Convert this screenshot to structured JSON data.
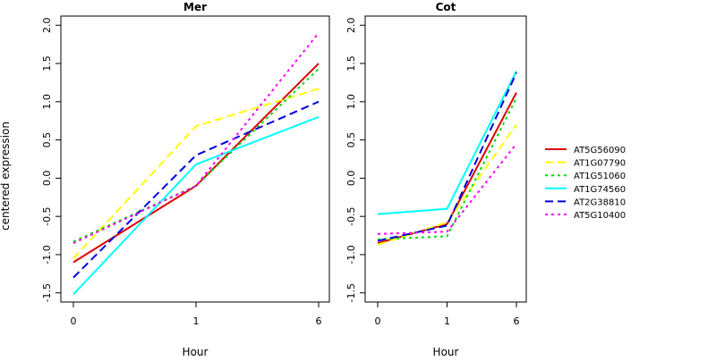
{
  "figure": {
    "ylabel": "centered expression"
  },
  "chart_data": [
    {
      "type": "line",
      "title": "Mer",
      "xlabel": "Hour",
      "ylabel": "centered expression",
      "categories": [
        "0",
        "1",
        "6"
      ],
      "ylim": [
        -1.62,
        2.12
      ],
      "yticks": [
        "-1.5",
        "-1.0",
        "-0.5",
        "0.0",
        "0.5",
        "1.0",
        "1.5",
        "2.0"
      ],
      "grid": false,
      "series": [
        {
          "name": "AT5G56090",
          "color": "#dd0000",
          "dash": "solid",
          "values": [
            -1.1,
            -0.1,
            1.5
          ]
        },
        {
          "name": "AT1G07790",
          "color": "#ffff00",
          "dash": "dashed",
          "values": [
            -1.05,
            0.68,
            1.17
          ]
        },
        {
          "name": "AT1G51060",
          "color": "#00dd00",
          "dash": "dotted",
          "values": [
            -0.83,
            -0.1,
            1.43
          ]
        },
        {
          "name": "AT1G74560",
          "color": "#00ffff",
          "dash": "solid",
          "values": [
            -1.52,
            0.18,
            0.8
          ]
        },
        {
          "name": "AT2G38810",
          "color": "#0000dd",
          "dash": "dashed",
          "values": [
            -1.3,
            0.3,
            1.0
          ]
        },
        {
          "name": "AT5G10400",
          "color": "#ff00ff",
          "dash": "dotted",
          "values": [
            -0.85,
            -0.1,
            1.9
          ]
        }
      ]
    },
    {
      "type": "line",
      "title": "Cot",
      "xlabel": "Hour",
      "ylabel": "",
      "categories": [
        "0",
        "1",
        "6"
      ],
      "ylim": [
        -1.62,
        2.12
      ],
      "yticks": [
        "-1.5",
        "-1.0",
        "-0.5",
        "0.0",
        "0.5",
        "1.0",
        "1.5",
        "2.0"
      ],
      "grid": false,
      "series": [
        {
          "name": "AT5G56090",
          "color": "#dd0000",
          "dash": "solid",
          "values": [
            -0.85,
            -0.6,
            1.12
          ]
        },
        {
          "name": "AT1G07790",
          "color": "#ffff00",
          "dash": "dashed",
          "values": [
            -0.87,
            -0.58,
            0.7
          ]
        },
        {
          "name": "AT1G51060",
          "color": "#00dd00",
          "dash": "dotted",
          "values": [
            -0.8,
            -0.76,
            1.05
          ]
        },
        {
          "name": "AT1G74560",
          "color": "#00ffff",
          "dash": "solid",
          "values": [
            -0.47,
            -0.4,
            1.4
          ]
        },
        {
          "name": "AT2G38810",
          "color": "#0000dd",
          "dash": "dashed",
          "values": [
            -0.82,
            -0.62,
            1.38
          ]
        },
        {
          "name": "AT5G10400",
          "color": "#ff00ff",
          "dash": "dotted",
          "values": [
            -0.73,
            -0.7,
            0.45
          ]
        }
      ]
    }
  ],
  "legend": {
    "placement": "right",
    "entries": [
      {
        "label": "AT5G56090",
        "color": "#dd0000",
        "dash": "solid"
      },
      {
        "label": "AT1G07790",
        "color": "#ffff00",
        "dash": "dashed"
      },
      {
        "label": "AT1G51060",
        "color": "#00dd00",
        "dash": "dotted"
      },
      {
        "label": "AT1G74560",
        "color": "#00ffff",
        "dash": "solid"
      },
      {
        "label": "AT2G38810",
        "color": "#0000dd",
        "dash": "dashed"
      },
      {
        "label": "AT5G10400",
        "color": "#ff00ff",
        "dash": "dotted"
      }
    ]
  }
}
